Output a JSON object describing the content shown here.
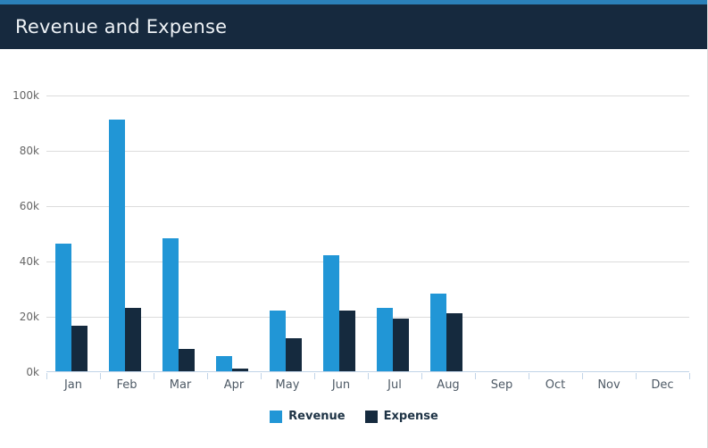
{
  "header": {
    "title": "Revenue and Expense"
  },
  "colors": {
    "header_strip": "#2b80b9",
    "header_bg": "#16293e",
    "revenue": "#2196d6",
    "expense": "#152a3e",
    "gridline": "#dcdcdc",
    "axis": "#c1d4e8"
  },
  "chart_data": {
    "type": "bar",
    "title": "Revenue and Expense",
    "categories": [
      "Jan",
      "Feb",
      "Mar",
      "Apr",
      "May",
      "Jun",
      "Jul",
      "Aug",
      "Sep",
      "Oct",
      "Nov",
      "Dec"
    ],
    "series": [
      {
        "name": "Revenue",
        "color": "#2196d6",
        "values": [
          46000,
          91000,
          48000,
          5500,
          22000,
          42000,
          23000,
          28000,
          0,
          0,
          0,
          0
        ]
      },
      {
        "name": "Expense",
        "color": "#152a3e",
        "values": [
          16500,
          23000,
          8000,
          1000,
          12000,
          22000,
          19000,
          21000,
          0,
          0,
          0,
          0
        ]
      }
    ],
    "xlabel": "",
    "ylabel": "",
    "ylim": [
      0,
      100000
    ],
    "y_ticks": [
      {
        "label": "0k",
        "value": 0
      },
      {
        "label": "20k",
        "value": 20000
      },
      {
        "label": "40k",
        "value": 40000
      },
      {
        "label": "60k",
        "value": 60000
      },
      {
        "label": "80k",
        "value": 80000
      },
      {
        "label": "100k",
        "value": 100000
      }
    ],
    "grid": true,
    "legend_position": "bottom"
  }
}
